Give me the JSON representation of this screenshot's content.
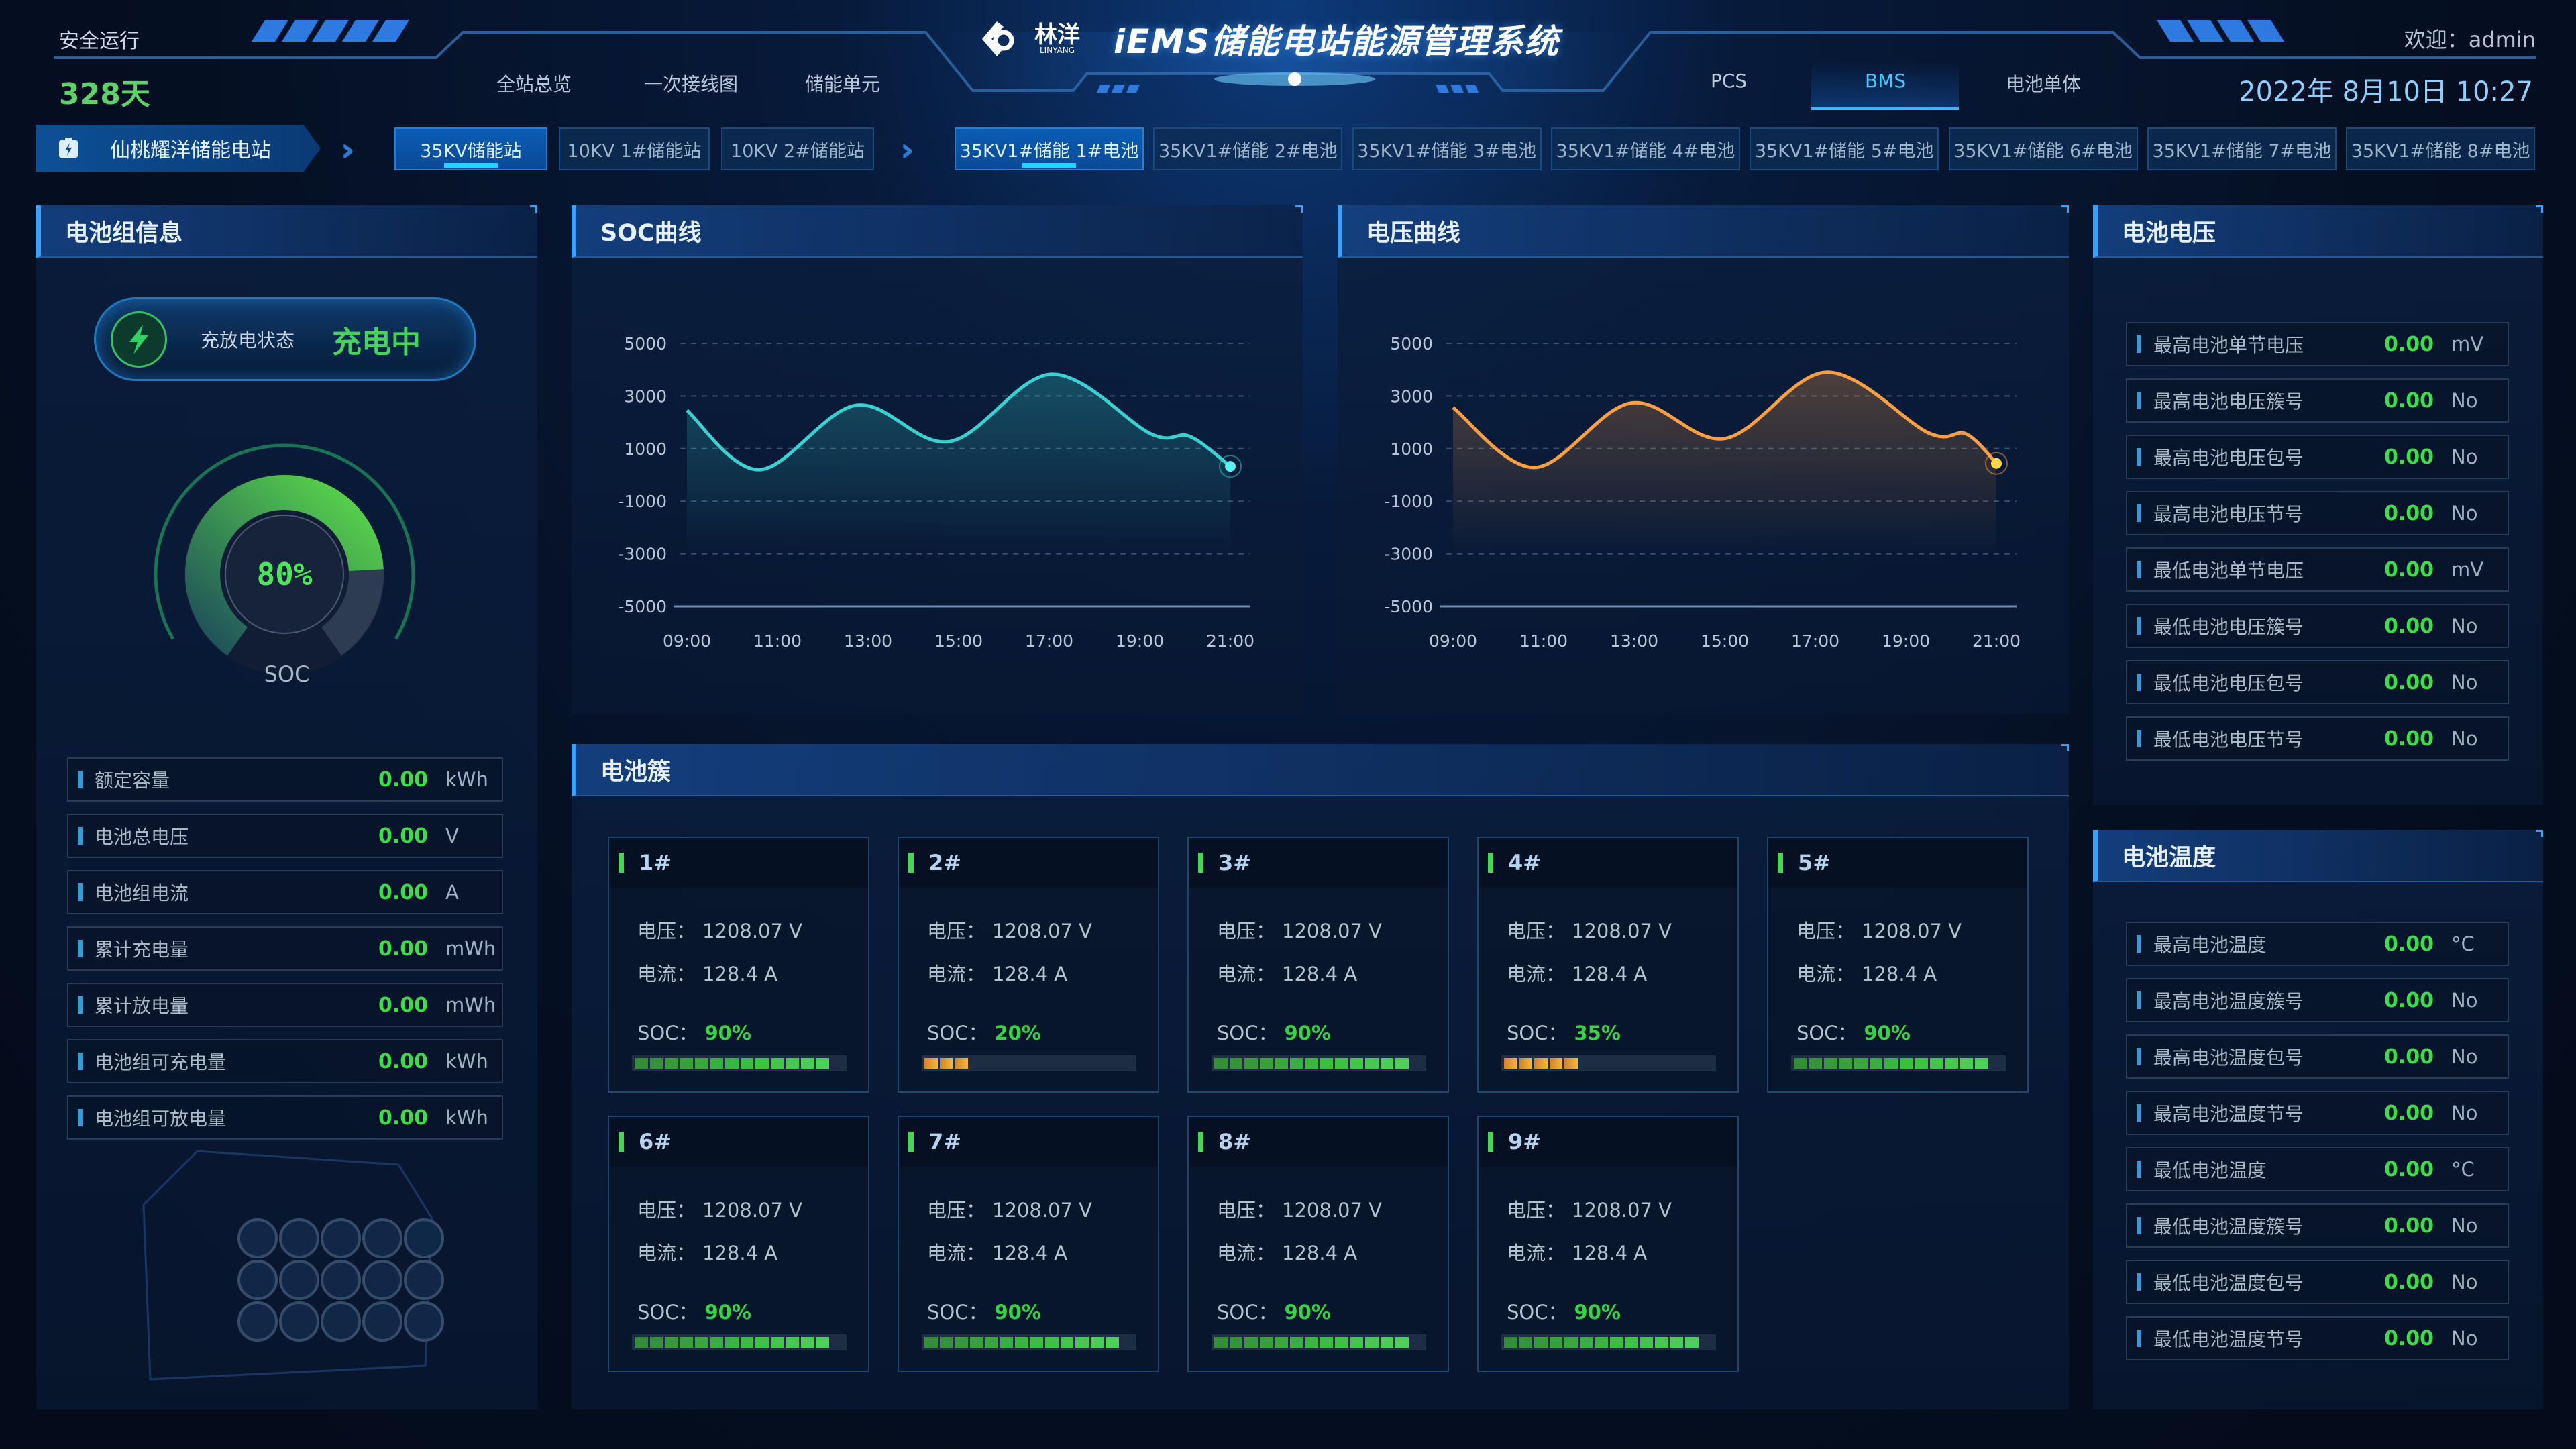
{
  "header": {
    "safe_run_label": "安全运行",
    "safe_run_days": "328天",
    "logo_cn": "林洋",
    "logo_en": "LINYANG",
    "title": "iEMS储能电站能源管理系统",
    "welcome": "欢迎：admin",
    "datetime": "2022年 8月10日  10:27",
    "nav_left": [
      "全站总览",
      "一次接线图",
      "储能单元"
    ],
    "nav_right": [
      "PCS",
      "BMS",
      "电池单体"
    ],
    "nav_active": "BMS"
  },
  "station": {
    "name": "仙桃耀洋储能电站",
    "icon": "battery-bolt-icon"
  },
  "station_tabs": [
    {
      "label": "35KV储能站",
      "active": true
    },
    {
      "label": "10KV 1#储能站",
      "active": false
    },
    {
      "label": "10KV 2#储能站",
      "active": false
    }
  ],
  "battery_tabs": [
    {
      "label": "35KV1#储能 1#电池",
      "active": true
    },
    {
      "label": "35KV1#储能 2#电池",
      "active": false
    },
    {
      "label": "35KV1#储能 3#电池",
      "active": false
    },
    {
      "label": "35KV1#储能 4#电池",
      "active": false
    },
    {
      "label": "35KV1#储能 5#电池",
      "active": false
    },
    {
      "label": "35KV1#储能 6#电池",
      "active": false
    },
    {
      "label": "35KV1#储能 7#电池",
      "active": false
    },
    {
      "label": "35KV1#储能 8#电池",
      "active": false
    }
  ],
  "battery_group": {
    "title": "电池组信息",
    "status_label": "充放电状态",
    "status_value": "充电中",
    "soc_percent": 80,
    "soc_text": "80%",
    "soc_label": "SOC",
    "items": [
      {
        "label": "额定容量",
        "value": "0.00",
        "unit": "kWh"
      },
      {
        "label": "电池总电压",
        "value": "0.00",
        "unit": "V"
      },
      {
        "label": "电池组电流",
        "value": "0.00",
        "unit": "A"
      },
      {
        "label": "累计充电量",
        "value": "0.00",
        "unit": "mWh"
      },
      {
        "label": "累计放电量",
        "value": "0.00",
        "unit": "mWh"
      },
      {
        "label": "电池组可充电量",
        "value": "0.00",
        "unit": "kWh"
      },
      {
        "label": "电池组可放电量",
        "value": "0.00",
        "unit": "kWh"
      }
    ]
  },
  "chart_data": [
    {
      "type": "area",
      "title": "SOC曲线",
      "x_ticks": [
        "09:00",
        "11:00",
        "13:00",
        "15:00",
        "17:00",
        "19:00",
        "21:00"
      ],
      "y_ticks": [
        5000,
        3000,
        1000,
        -1000,
        -3000,
        -5000
      ],
      "ylim": [
        -5000,
        5000
      ],
      "grid": true,
      "color": "#3ad1d1",
      "x": [
        "09:00",
        "10:36",
        "12:44",
        "14:48",
        "17:03",
        "19:15",
        "20:06",
        "21:00"
      ],
      "y": [
        2460,
        200,
        2650,
        1270,
        3830,
        1560,
        1470,
        330
      ]
    },
    {
      "type": "area",
      "title": "电压曲线",
      "x_ticks": [
        "09:00",
        "11:00",
        "13:00",
        "15:00",
        "17:00",
        "19:00",
        "21:00"
      ],
      "y_ticks": [
        5000,
        3000,
        1000,
        -1000,
        -3000,
        -5000
      ],
      "ylim": [
        -5000,
        5000
      ],
      "grid": true,
      "color": "#ff9f43",
      "x": [
        "09:00",
        "10:48",
        "12:56",
        "15:00",
        "17:15",
        "19:30",
        "20:20",
        "21:00"
      ],
      "y": [
        2565,
        284,
        2737,
        1386,
        3907,
        1600,
        1560,
        440
      ]
    }
  ],
  "cluster": {
    "title": "电池簇",
    "voltage_label": "电压：",
    "current_label": "电流：",
    "soc_label": "SOC：",
    "cards": [
      {
        "name": "1#",
        "voltage": "1208.07 V",
        "current": "128.4 A",
        "soc": "90%",
        "soc_value": 90
      },
      {
        "name": "2#",
        "voltage": "1208.07 V",
        "current": "128.4 A",
        "soc": "20%",
        "soc_value": 20
      },
      {
        "name": "3#",
        "voltage": "1208.07 V",
        "current": "128.4 A",
        "soc": "90%",
        "soc_value": 90
      },
      {
        "name": "4#",
        "voltage": "1208.07 V",
        "current": "128.4 A",
        "soc": "35%",
        "soc_value": 35
      },
      {
        "name": "5#",
        "voltage": "1208.07 V",
        "current": "128.4 A",
        "soc": "90%",
        "soc_value": 90
      },
      {
        "name": "6#",
        "voltage": "1208.07 V",
        "current": "128.4 A",
        "soc": "90%",
        "soc_value": 90
      },
      {
        "name": "7#",
        "voltage": "1208.07 V",
        "current": "128.4 A",
        "soc": "90%",
        "soc_value": 90
      },
      {
        "name": "8#",
        "voltage": "1208.07 V",
        "current": "128.4 A",
        "soc": "90%",
        "soc_value": 90
      },
      {
        "name": "9#",
        "voltage": "1208.07 V",
        "current": "128.4 A",
        "soc": "90%",
        "soc_value": 90
      }
    ]
  },
  "cell_voltage": {
    "title": "电池电压",
    "items": [
      {
        "label": "最高电池单节电压",
        "value": "0.00",
        "unit": "mV"
      },
      {
        "label": "最高电池电压簇号",
        "value": "0.00",
        "unit": "No"
      },
      {
        "label": "最高电池电压包号",
        "value": "0.00",
        "unit": "No"
      },
      {
        "label": "最高电池电压节号",
        "value": "0.00",
        "unit": "No"
      },
      {
        "label": "最低电池单节电压",
        "value": "0.00",
        "unit": "mV"
      },
      {
        "label": "最低电池电压簇号",
        "value": "0.00",
        "unit": "No"
      },
      {
        "label": "最低电池电压包号",
        "value": "0.00",
        "unit": "No"
      },
      {
        "label": "最低电池电压节号",
        "value": "0.00",
        "unit": "No"
      }
    ]
  },
  "cell_temperature": {
    "title": "电池温度",
    "items": [
      {
        "label": "最高电池温度",
        "value": "0.00",
        "unit": "°C"
      },
      {
        "label": "最高电池温度簇号",
        "value": "0.00",
        "unit": "No"
      },
      {
        "label": "最高电池温度包号",
        "value": "0.00",
        "unit": "No"
      },
      {
        "label": "最高电池温度节号",
        "value": "0.00",
        "unit": "No"
      },
      {
        "label": "最低电池温度",
        "value": "0.00",
        "unit": "°C"
      },
      {
        "label": "最低电池温度簇号",
        "value": "0.00",
        "unit": "No"
      },
      {
        "label": "最低电池温度包号",
        "value": "0.00",
        "unit": "No"
      },
      {
        "label": "最低电池温度节号",
        "value": "0.00",
        "unit": "No"
      }
    ]
  },
  "colors": {
    "accent": "#3ba1ff",
    "good": "#3ddc4a",
    "warn": "#f0a030",
    "soc_line": "#3ad1d1",
    "voltage_line": "#ff9f43"
  }
}
